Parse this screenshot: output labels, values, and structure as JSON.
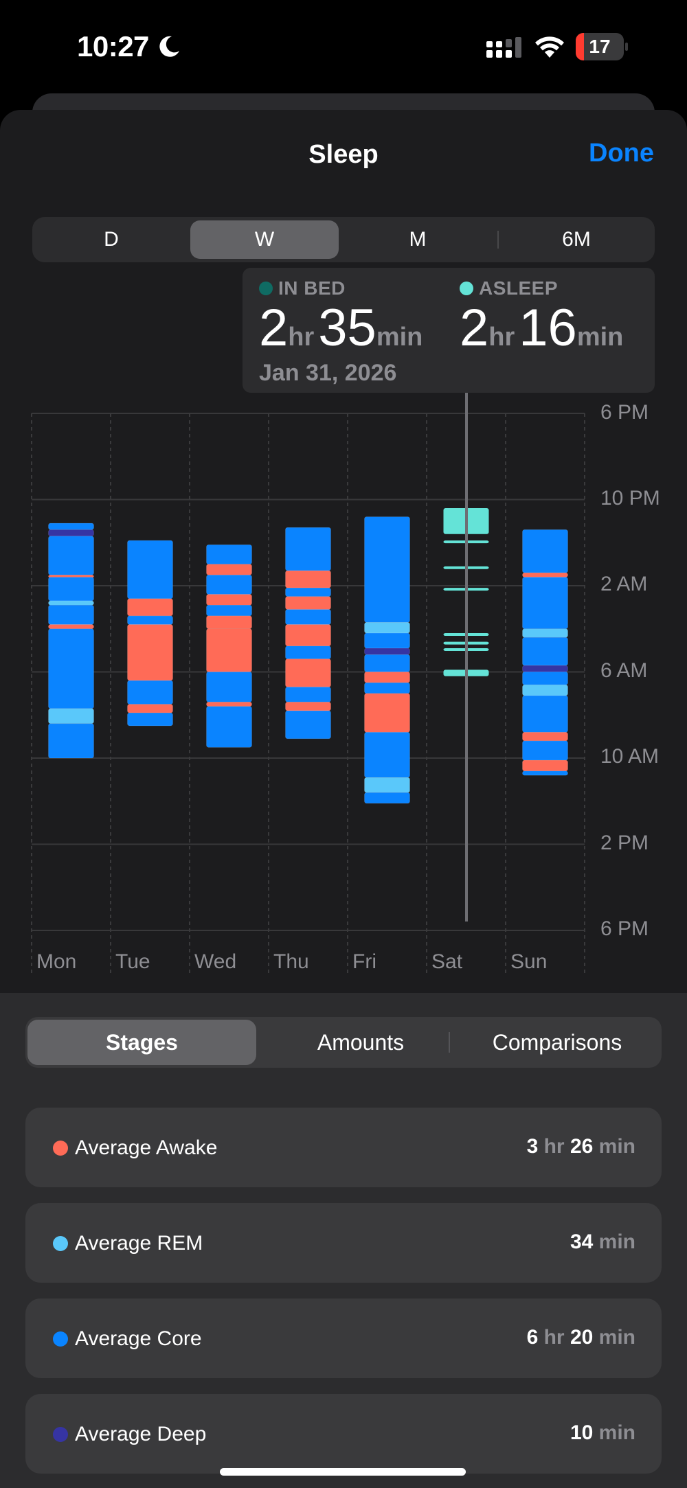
{
  "status": {
    "time": "10:27",
    "battery": "17",
    "battery_level": 0.17,
    "icons": [
      "moon-icon",
      "cellular-signal-icon",
      "wifi-icon",
      "battery-icon"
    ]
  },
  "header": {
    "title": "Sleep",
    "done": "Done"
  },
  "periods": [
    "D",
    "W",
    "M",
    "6M"
  ],
  "selected_period": "W",
  "tooltip": {
    "in_bed_label": "IN BED",
    "in_bed_hr": "2",
    "in_bed_min": "35",
    "asleep_label": "ASLEEP",
    "asleep_hr": "2",
    "asleep_min": "16",
    "hr_unit": "hr",
    "min_unit": "min",
    "date": "Jan 31, 2026"
  },
  "colors": {
    "awake": "#ff6b57",
    "rem": "#5ac8fa",
    "core": "#0a84ff",
    "deep": "#3634a3",
    "inbed": "#64e3d7",
    "accent": "#0a84ff"
  },
  "chart_data": {
    "type": "bar",
    "y_ticks": [
      "6 PM",
      "10 PM",
      "2 AM",
      "6 AM",
      "10 AM",
      "2 PM",
      "6 PM"
    ],
    "y_range_hours": [
      18,
      42
    ],
    "categories": [
      "Mon",
      "Tue",
      "Wed",
      "Thu",
      "Fri",
      "Sat",
      "Sun"
    ],
    "selected_category": "Sat",
    "series": [
      {
        "day": "Mon",
        "segments": [
          [
            "core",
            23.1,
            23.4
          ],
          [
            "deep",
            23.4,
            23.7
          ],
          [
            "core",
            23.7,
            25.5
          ],
          [
            "awake",
            25.5,
            25.6
          ],
          [
            "core",
            25.6,
            26.7
          ],
          [
            "rem",
            26.7,
            26.9
          ],
          [
            "core",
            26.9,
            27.8
          ],
          [
            "awake",
            27.8,
            28.0
          ],
          [
            "core",
            28.0,
            31.7
          ],
          [
            "rem",
            31.7,
            32.4
          ],
          [
            "core",
            32.4,
            34.0
          ]
        ]
      },
      {
        "day": "Tue",
        "segments": [
          [
            "core",
            23.9,
            26.6
          ],
          [
            "awake",
            26.6,
            27.4
          ],
          [
            "core",
            27.4,
            27.8
          ],
          [
            "awake",
            27.8,
            30.4
          ],
          [
            "core",
            30.4,
            31.5
          ],
          [
            "awake",
            31.5,
            31.9
          ],
          [
            "core",
            31.9,
            32.5
          ]
        ]
      },
      {
        "day": "Wed",
        "segments": [
          [
            "core",
            24.1,
            25.0
          ],
          [
            "awake",
            25.0,
            25.5
          ],
          [
            "core",
            25.5,
            26.4
          ],
          [
            "awake",
            26.4,
            26.9
          ],
          [
            "core",
            26.9,
            27.4
          ],
          [
            "awake",
            27.4,
            28.0
          ],
          [
            "awake",
            28.0,
            30.0
          ],
          [
            "core",
            30.0,
            31.4
          ],
          [
            "awake",
            31.4,
            31.6
          ],
          [
            "core",
            31.6,
            33.5
          ]
        ]
      },
      {
        "day": "Thu",
        "segments": [
          [
            "core",
            23.3,
            25.3
          ],
          [
            "awake",
            25.3,
            26.1
          ],
          [
            "core",
            26.1,
            26.5
          ],
          [
            "awake",
            26.5,
            27.1
          ],
          [
            "core",
            27.1,
            27.8
          ],
          [
            "awake",
            27.8,
            28.8
          ],
          [
            "core",
            28.8,
            29.4
          ],
          [
            "awake",
            29.4,
            30.7
          ],
          [
            "core",
            30.7,
            31.4
          ],
          [
            "awake",
            31.4,
            31.8
          ],
          [
            "core",
            31.8,
            33.1
          ]
        ]
      },
      {
        "day": "Fri",
        "segments": [
          [
            "core",
            22.8,
            27.7
          ],
          [
            "rem",
            27.7,
            28.2
          ],
          [
            "core",
            28.2,
            28.9
          ],
          [
            "deep",
            28.9,
            29.2
          ],
          [
            "core",
            29.2,
            30.0
          ],
          [
            "awake",
            30.0,
            30.5
          ],
          [
            "core",
            30.5,
            31.0
          ],
          [
            "awake",
            31.0,
            32.8
          ],
          [
            "core",
            32.8,
            34.9
          ],
          [
            "rem",
            34.9,
            35.6
          ],
          [
            "core",
            35.6,
            36.1
          ]
        ]
      },
      {
        "day": "Sat",
        "segments": [
          [
            "inbed",
            22.4,
            23.6
          ],
          [
            "inbed",
            23.9,
            24.0
          ],
          [
            "inbed",
            25.1,
            25.2
          ],
          [
            "inbed",
            26.1,
            26.2
          ],
          [
            "inbed",
            28.2,
            28.3
          ],
          [
            "inbed",
            28.6,
            28.7
          ],
          [
            "inbed",
            28.9,
            29.0
          ],
          [
            "inbed",
            29.9,
            30.2
          ]
        ]
      },
      {
        "day": "Sun",
        "segments": [
          [
            "core",
            23.4,
            25.4
          ],
          [
            "awake",
            25.4,
            25.6
          ],
          [
            "core",
            25.6,
            28.0
          ],
          [
            "rem",
            28.0,
            28.4
          ],
          [
            "core",
            28.4,
            29.7
          ],
          [
            "deep",
            29.7,
            30.0
          ],
          [
            "core",
            30.0,
            30.6
          ],
          [
            "rem",
            30.6,
            31.1
          ],
          [
            "core",
            31.1,
            32.8
          ],
          [
            "awake",
            32.8,
            33.2
          ],
          [
            "core",
            33.2,
            34.1
          ],
          [
            "awake",
            34.1,
            34.6
          ],
          [
            "core",
            34.6,
            34.8
          ]
        ]
      }
    ]
  },
  "view_tabs": [
    "Stages",
    "Amounts",
    "Comparisons"
  ],
  "selected_view": "Stages",
  "stats": [
    {
      "name": "Average Awake",
      "stage": "awake",
      "hr": "3",
      "min": "26"
    },
    {
      "name": "Average REM",
      "stage": "rem",
      "hr": "",
      "min": "34"
    },
    {
      "name": "Average Core",
      "stage": "core",
      "hr": "6",
      "min": "20"
    },
    {
      "name": "Average Deep",
      "stage": "deep",
      "hr": "",
      "min": "10"
    }
  ],
  "units": {
    "hr": "hr",
    "min": "min"
  }
}
